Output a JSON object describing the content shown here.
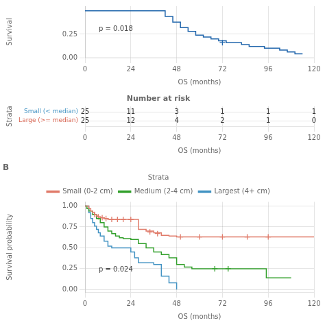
{
  "chart_data": [
    {
      "type": "line",
      "xlabel": "OS (months)",
      "ylabel": "Survival",
      "xlim": [
        0,
        120
      ],
      "ylim": [
        0.0,
        0.55
      ],
      "xticks": [
        0,
        24,
        48,
        72,
        96,
        120
      ],
      "yticks": [
        {
          "value": 0,
          "label": "0.00"
        },
        0.25
      ],
      "grid": true,
      "line_style": "steps-post",
      "marker": "plus",
      "annotations": [
        "p = 0.018"
      ],
      "series": [
        {
          "color": "#2166ac",
          "x": [
            0,
            38,
            42,
            46,
            50,
            54,
            58,
            62,
            66,
            70,
            74,
            78,
            82,
            86,
            90,
            94,
            98,
            102,
            106,
            110,
            114
          ],
          "values": [
            0.5,
            0.5,
            0.44,
            0.38,
            0.32,
            0.28,
            0.24,
            0.22,
            0.2,
            0.18,
            0.16,
            0.16,
            0.14,
            0.12,
            0.12,
            0.1,
            0.1,
            0.08,
            0.06,
            0.04,
            0.04
          ],
          "censor_x": [
            72
          ],
          "censor_values": [
            0.16
          ]
        }
      ]
    },
    {
      "type": "table",
      "title": "Number at risk",
      "xlabel": "OS (months)",
      "ylabel": "Strata",
      "xlim": [
        0,
        120
      ],
      "xticks": [
        0,
        24,
        48,
        72,
        96,
        120
      ],
      "x": [
        0,
        24,
        48,
        72,
        96,
        120
      ],
      "categories": [
        "Small (< median)",
        "Large (>= median)"
      ],
      "colors": [
        "#4393c3",
        "#d6604d"
      ],
      "values": [
        [
          25,
          11,
          3,
          1,
          1,
          1
        ],
        [
          25,
          12,
          4,
          2,
          1,
          0
        ]
      ],
      "color": "#333333",
      "data_labels": true,
      "grid": true
    },
    {
      "type": "line",
      "title": "B",
      "legend": "top",
      "legend_title": "Strata",
      "xlabel": "OS (months)",
      "ylabel": "Survival probability",
      "xlim": [
        0,
        120
      ],
      "ylim": [
        -0.03,
        1.05
      ],
      "xticks": [
        0,
        24,
        48,
        72,
        96,
        120
      ],
      "yticks": [
        {
          "value": 0,
          "label": "0.00"
        },
        0.25,
        {
          "value": 0.5,
          "label": "0.50"
        },
        0.75,
        {
          "value": 1,
          "label": "1.00"
        }
      ],
      "grid": true,
      "line_style": "steps-post",
      "marker": "plus",
      "annotations": [
        "p = 0.024"
      ],
      "series": [
        {
          "name": "Small (0-2 cm)",
          "color": "#e07b6a",
          "x": [
            0,
            1,
            2,
            3,
            4,
            5,
            6,
            7,
            8,
            10,
            12,
            14,
            16,
            18,
            20,
            24,
            28,
            32,
            36,
            40,
            44,
            48,
            60,
            72,
            84,
            96,
            108,
            120
          ],
          "values": [
            1.0,
            1.0,
            0.97,
            0.94,
            0.92,
            0.9,
            0.88,
            0.87,
            0.86,
            0.85,
            0.84,
            0.84,
            0.84,
            0.84,
            0.84,
            0.84,
            0.72,
            0.7,
            0.68,
            0.65,
            0.64,
            0.63,
            0.63,
            0.63,
            0.63,
            0.63,
            0.63,
            0.63
          ],
          "censor_x": [
            5,
            7,
            9,
            11,
            14,
            17,
            20,
            24,
            34,
            38,
            50,
            60,
            72,
            85,
            96
          ],
          "censor_values": [
            0.9,
            0.87,
            0.86,
            0.85,
            0.84,
            0.84,
            0.84,
            0.84,
            0.69,
            0.67,
            0.63,
            0.63,
            0.63,
            0.63,
            0.63
          ]
        },
        {
          "name": "Medium (2-4 cm)",
          "color": "#33a02c",
          "x": [
            0,
            1,
            2,
            4,
            6,
            8,
            10,
            12,
            14,
            16,
            18,
            20,
            22,
            24,
            28,
            32,
            36,
            40,
            44,
            48,
            52,
            56,
            60,
            65,
            70,
            75,
            80,
            85,
            90,
            95,
            100,
            105,
            108
          ],
          "values": [
            1.0,
            0.97,
            0.94,
            0.9,
            0.85,
            0.8,
            0.75,
            0.7,
            0.67,
            0.64,
            0.62,
            0.61,
            0.61,
            0.6,
            0.55,
            0.5,
            0.45,
            0.42,
            0.38,
            0.3,
            0.27,
            0.25,
            0.25,
            0.25,
            0.25,
            0.25,
            0.25,
            0.25,
            0.25,
            0.14,
            0.14,
            0.14,
            0.14
          ],
          "censor_x": [
            68,
            75
          ],
          "censor_values": [
            0.25,
            0.25
          ]
        },
        {
          "name": "Largest (4+ cm)",
          "color": "#4393c3",
          "x": [
            0,
            1,
            2,
            3,
            4,
            5,
            6,
            7,
            8,
            10,
            12,
            14,
            16,
            18,
            20,
            22,
            24,
            26,
            28,
            32,
            36,
            40,
            44,
            48
          ],
          "values": [
            1.0,
            1.0,
            0.92,
            0.85,
            0.8,
            0.76,
            0.72,
            0.68,
            0.64,
            0.58,
            0.52,
            0.5,
            0.5,
            0.5,
            0.5,
            0.5,
            0.45,
            0.38,
            0.32,
            0.32,
            0.3,
            0.16,
            0.08,
            0.0
          ]
        }
      ]
    }
  ]
}
